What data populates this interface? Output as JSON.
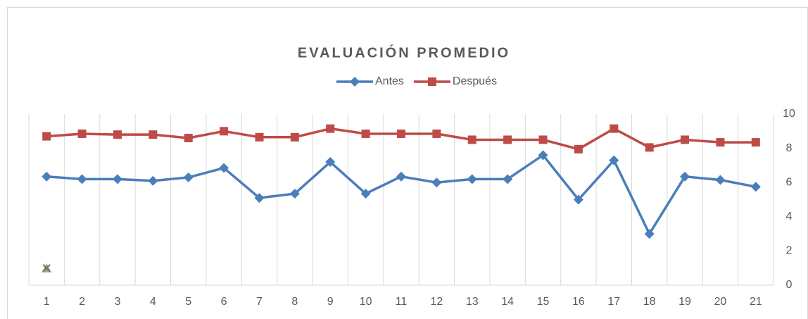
{
  "chart_data": {
    "type": "line",
    "title": "EVALUACIÓN PROMEDIO",
    "categories": [
      "1",
      "2",
      "3",
      "4",
      "5",
      "6",
      "7",
      "8",
      "9",
      "10",
      "11",
      "12",
      "13",
      "14",
      "15",
      "16",
      "17",
      "18",
      "19",
      "20",
      "21"
    ],
    "series": [
      {
        "name": "Antes",
        "color": "#4a7ebb",
        "marker": "diamond",
        "values": [
          6.35,
          6.2,
          6.2,
          6.1,
          6.3,
          6.85,
          5.1,
          5.35,
          7.2,
          5.35,
          6.35,
          6.0,
          6.2,
          6.2,
          7.6,
          5.0,
          7.3,
          3.0,
          6.35,
          6.15,
          5.75
        ]
      },
      {
        "name": "Después",
        "color": "#be4b48",
        "marker": "square",
        "values": [
          8.7,
          8.85,
          8.8,
          8.8,
          8.6,
          9.0,
          8.65,
          8.65,
          9.15,
          8.85,
          8.85,
          8.85,
          8.5,
          8.5,
          8.5,
          7.95,
          9.15,
          8.05,
          8.5,
          8.35,
          8.35
        ]
      },
      {
        "color": "#98b954",
        "marker": "triangle",
        "values": [
          1,
          null,
          null,
          null,
          null,
          null,
          null,
          null,
          null,
          null,
          null,
          null,
          null,
          null,
          null,
          null,
          null,
          null,
          null,
          null,
          null
        ]
      },
      {
        "color": "#7d60a0",
        "marker": "x",
        "values": [
          1,
          null,
          null,
          null,
          null,
          null,
          null,
          null,
          null,
          null,
          null,
          null,
          null,
          null,
          null,
          null,
          null,
          null,
          null,
          null,
          null
        ]
      }
    ],
    "ylim": [
      0,
      10
    ],
    "yticks": [
      0,
      2,
      4,
      6,
      8,
      10
    ],
    "y_axis_side": "right",
    "legend": "top"
  }
}
